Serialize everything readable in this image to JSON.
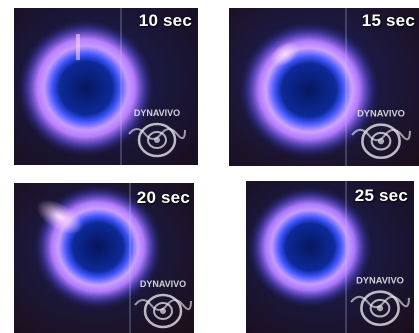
{
  "panels": [
    {
      "time_label": "10 sec"
    },
    {
      "time_label": "15 sec"
    },
    {
      "time_label": "20 sec"
    },
    {
      "time_label": "25 sec"
    }
  ],
  "watermark": {
    "text": "DYNAVIVO"
  },
  "colors": {
    "background": "#0e1230",
    "ring_outer": "#7a64ff",
    "ring_inner": "#e8a8ff",
    "center": "#0a1f6e",
    "flare": "#ffd3ff"
  }
}
